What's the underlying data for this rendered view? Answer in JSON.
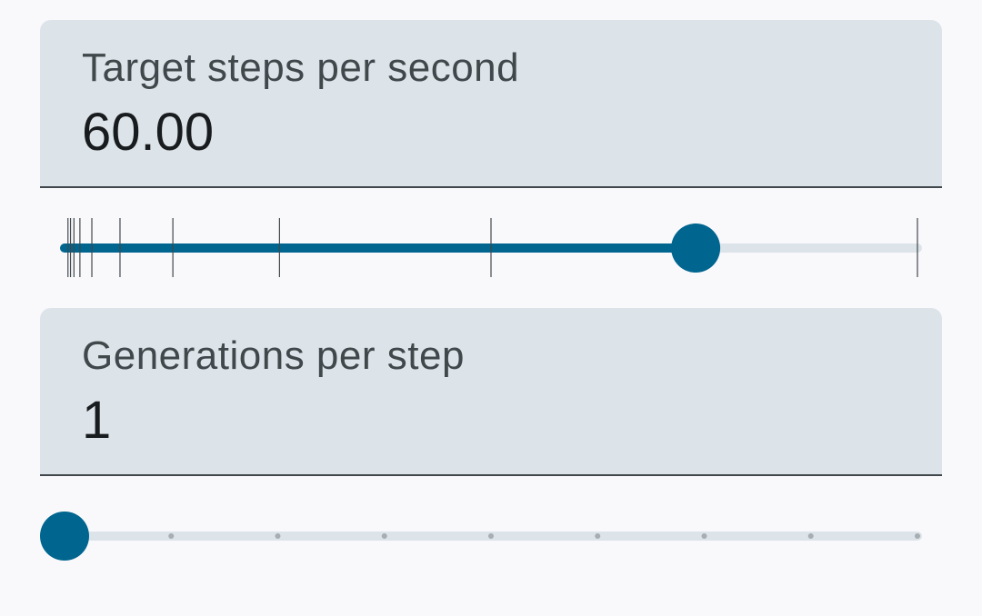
{
  "colors": {
    "active": "#00658f",
    "inactive": "#dce3e9",
    "tick_line": "#40484c",
    "tick_dot": "#a6aeb3"
  },
  "steps_field": {
    "label": "Target steps per second",
    "value": "60.00"
  },
  "steps_slider": {
    "value": 60,
    "fraction": 0.74,
    "tick_fractions": [
      0.004,
      0.007,
      0.011,
      0.018,
      0.032,
      0.065,
      0.127,
      0.252,
      0.5,
      1.0
    ]
  },
  "generations_field": {
    "label": "Generations per step",
    "value": "1"
  },
  "generations_slider": {
    "value": 1,
    "fraction": 0.0,
    "tick_count": 9
  }
}
